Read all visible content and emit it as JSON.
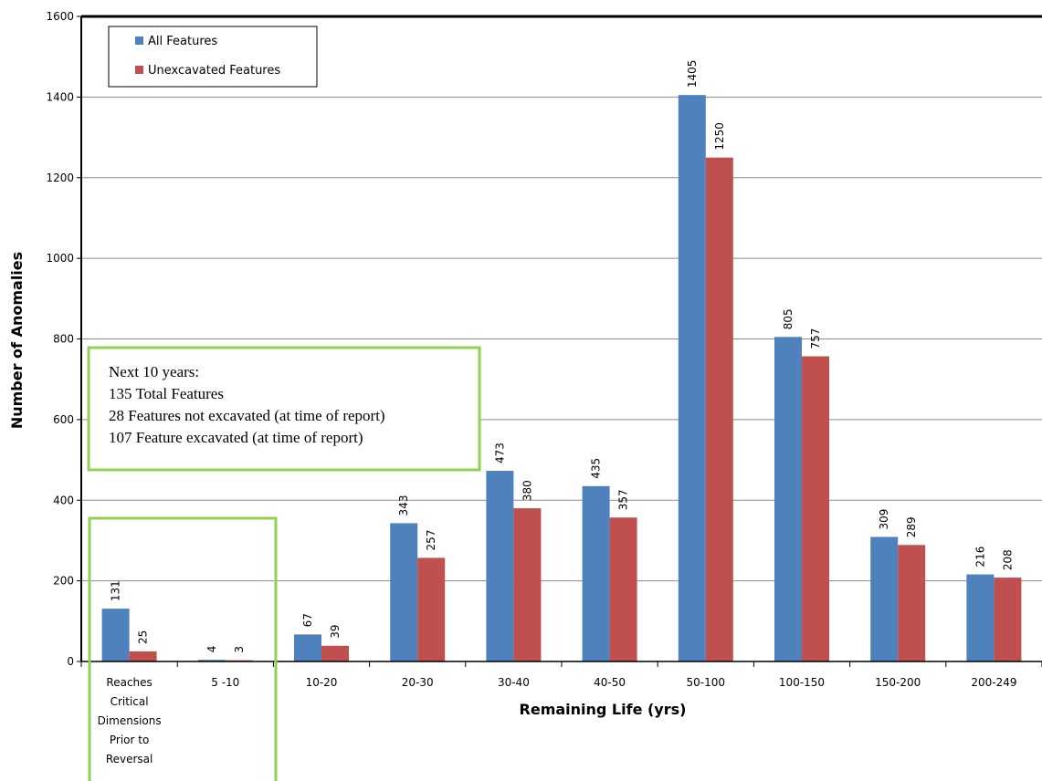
{
  "chart_data": {
    "type": "bar",
    "xlabel": "Remaining Life (yrs)",
    "ylabel": "Number of Anomalies",
    "ylim": [
      0,
      1600
    ],
    "yticks": [
      0,
      200,
      400,
      600,
      800,
      1000,
      1200,
      1400,
      1600
    ],
    "grid": true,
    "legend_position": "top-left",
    "categories": [
      [
        "Reaches",
        "Critical",
        "Dimensions",
        "Prior to",
        "Reversal"
      ],
      [
        "5 -10"
      ],
      [
        "10-20"
      ],
      [
        "20-30"
      ],
      [
        "30-40"
      ],
      [
        "40-50"
      ],
      [
        "50-100"
      ],
      [
        "100-150"
      ],
      [
        "150-200"
      ],
      [
        "200-249"
      ]
    ],
    "series": [
      {
        "name": "All Features",
        "color": "#4F81BD",
        "values": [
          131,
          4,
          67,
          343,
          473,
          435,
          1405,
          805,
          309,
          216
        ]
      },
      {
        "name": "Unexcavated Features",
        "color": "#C0504D",
        "values": [
          25,
          3,
          39,
          257,
          380,
          357,
          1250,
          757,
          289,
          208
        ]
      }
    ],
    "annotation": {
      "lines": [
        "Next 10 years:",
        "135 Total Features",
        "28 Features not excavated (at time of report)",
        "107 Feature excavated (at time of report)"
      ],
      "border_color": "#92D050"
    }
  }
}
